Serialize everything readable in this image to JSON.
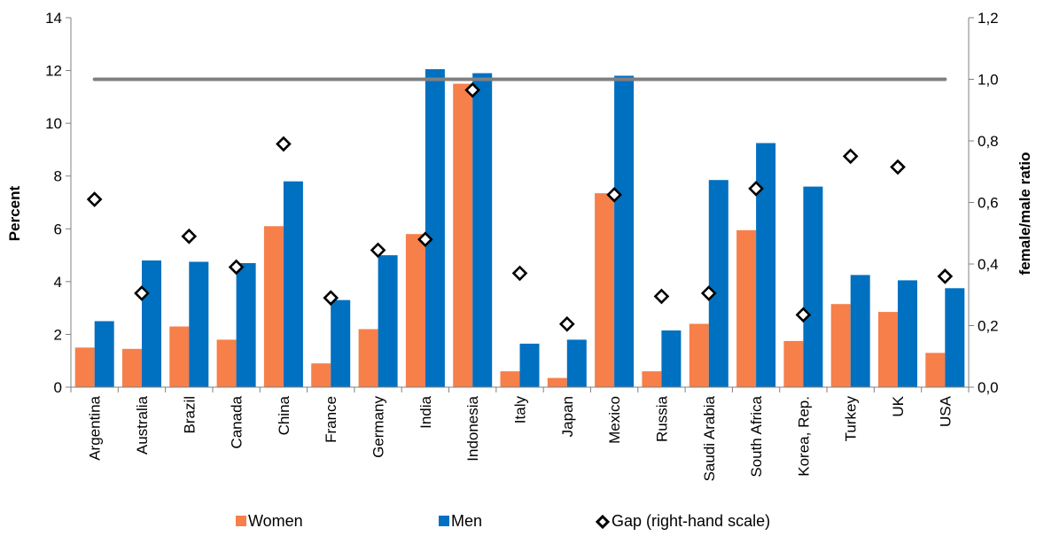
{
  "chart_data": {
    "type": "bar",
    "categories": [
      "Argentina",
      "Australia",
      "Brazil",
      "Canada",
      "China",
      "France",
      "Germany",
      "India",
      "Indonesia",
      "Italy",
      "Japan",
      "Mexico",
      "Russia",
      "Saudi Arabia",
      "South Africa",
      "Korea, Rep.",
      "Turkey",
      "UK",
      "USA"
    ],
    "series": [
      {
        "name": "Women",
        "type": "bar",
        "axis": "left",
        "color": "#f67f4a",
        "values": [
          1.5,
          1.45,
          2.3,
          1.8,
          6.1,
          0.9,
          2.2,
          5.8,
          11.5,
          0.6,
          0.35,
          7.35,
          0.6,
          2.4,
          5.95,
          1.75,
          3.15,
          2.85,
          1.3
        ]
      },
      {
        "name": "Men",
        "type": "bar",
        "axis": "left",
        "color": "#0070c0",
        "values": [
          2.5,
          4.8,
          4.75,
          4.7,
          7.8,
          3.3,
          5.0,
          12.05,
          11.9,
          1.65,
          1.8,
          11.8,
          2.15,
          7.85,
          9.25,
          7.6,
          4.25,
          4.05,
          3.75
        ]
      },
      {
        "name": "Gap (right-hand scale)",
        "type": "scatter",
        "axis": "right",
        "marker": "diamond",
        "values": [
          0.61,
          0.305,
          0.49,
          0.39,
          0.79,
          0.29,
          0.445,
          0.48,
          0.965,
          0.37,
          0.205,
          0.625,
          0.295,
          0.305,
          0.645,
          0.235,
          0.75,
          0.715,
          0.36
        ]
      }
    ],
    "reference_line": {
      "axis": "right",
      "value": 1.0,
      "color": "#808080"
    },
    "y_left": {
      "label": "Percent",
      "min": 0,
      "max": 14,
      "ticks": [
        "0",
        "2",
        "4",
        "6",
        "8",
        "10",
        "12",
        "14"
      ]
    },
    "y_right": {
      "label": "female/male ratio",
      "min": 0,
      "max": 1.2,
      "ticks": [
        "0,0",
        "0,2",
        "0,4",
        "0,6",
        "0,8",
        "1,0",
        "1,2"
      ]
    },
    "xlabel": "",
    "title": "",
    "grid": false,
    "legend": {
      "position": "bottom",
      "items": [
        "Women",
        "Men",
        "Gap (right-hand scale)"
      ]
    }
  }
}
